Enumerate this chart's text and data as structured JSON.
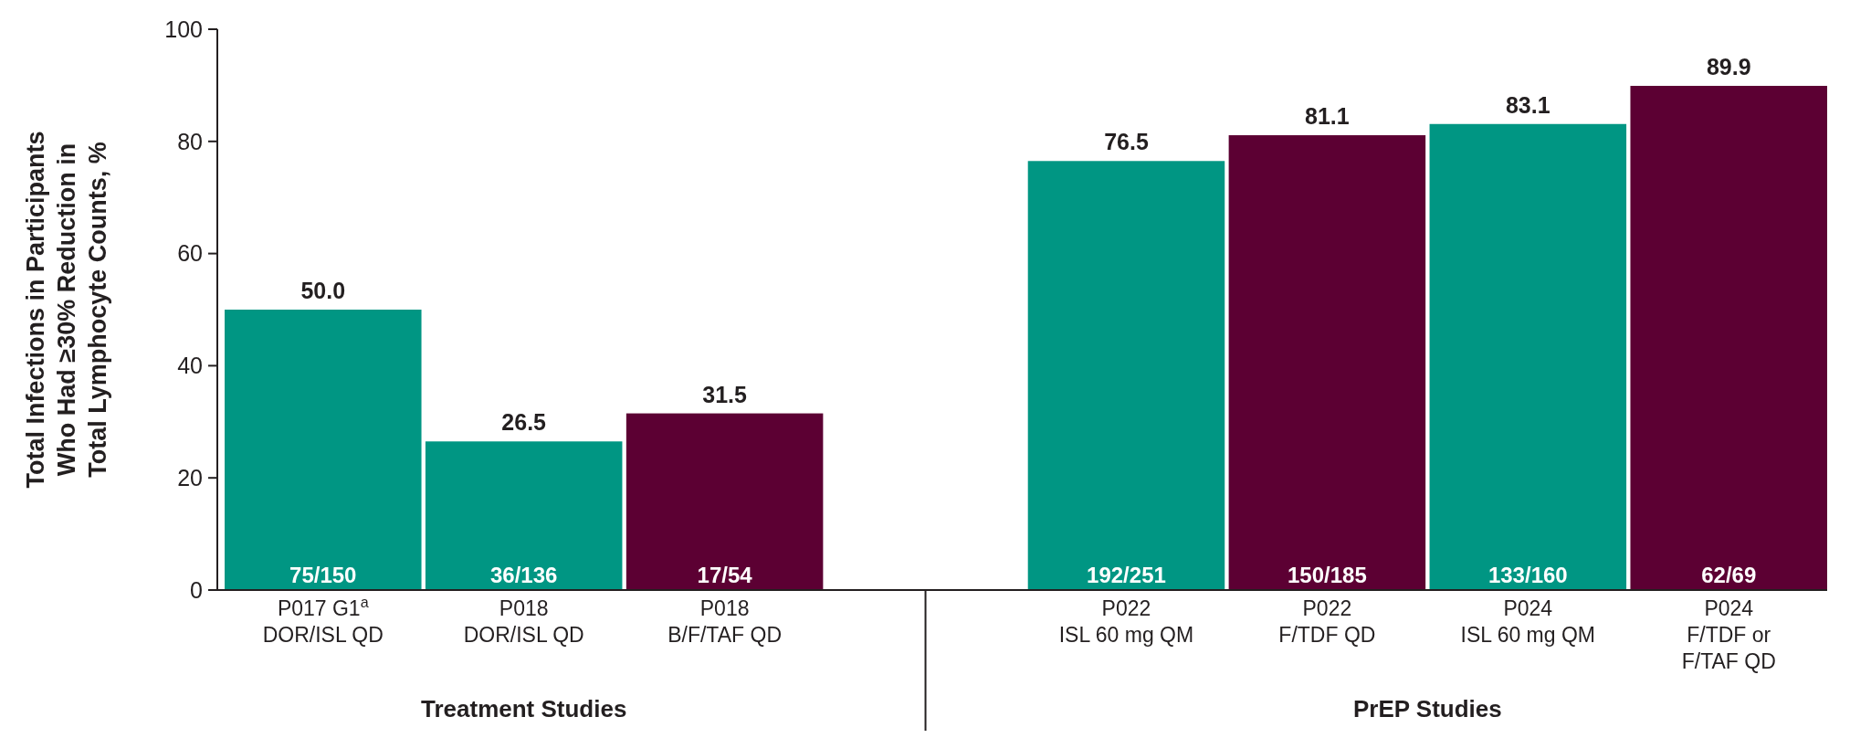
{
  "chart_data": {
    "type": "bar",
    "ylabel": "Total Infections in Participants\nWho Had ≥30% Reduction in\nTotal Lymphocyte Counts, %",
    "categories": [
      "P017 G1$^{a}$\nDOR/ISL QD",
      "P018\nDOR/ISL QD",
      "P018\nB/F/TAF QD",
      null,
      "P022\nISL 60 mg QM",
      "P022\nF/TDF QD",
      "P024\nISL 60 mg QM",
      "P024\nF/TDF or\nF/TAF QD"
    ],
    "values": [
      50.0,
      26.5,
      31.5,
      null,
      76.5,
      81.1,
      83.1,
      89.9
    ],
    "value_labels": [
      "50.0",
      "26.5",
      "31.5",
      null,
      "76.5",
      "81.1",
      "83.1",
      "89.9"
    ],
    "colors": [
      "#009683",
      "#009683",
      "#5c0033",
      null,
      "#009683",
      "#5c0033",
      "#009683",
      "#5c0033"
    ],
    "ylim": [
      0,
      100
    ],
    "yticks": [
      0,
      20,
      40,
      60,
      80,
      100
    ],
    "grid": false,
    "annotations": [
      {
        "text": "75/150",
        "x": "P017 G1$^{a}$\nDOR/ISL QD",
        "y": 0
      },
      {
        "text": "36/136",
        "x": "P018\nDOR/ISL QD",
        "y": 0
      },
      {
        "text": "17/54",
        "x": "P018\nB/F/TAF QD",
        "y": 0
      },
      {
        "text": "192/251",
        "x": "P022\nISL 60 mg QM",
        "y": 0
      },
      {
        "text": "150/185",
        "x": "P022\nF/TDF QD",
        "y": 0
      },
      {
        "text": "133/160",
        "x": "P024\nISL 60 mg QM",
        "y": 0
      },
      {
        "text": "62/69",
        "x": "P024\nF/TDF or\nF/TAF QD",
        "y": 0
      },
      "Treatment Studies",
      "PrEP Studies"
    ]
  }
}
